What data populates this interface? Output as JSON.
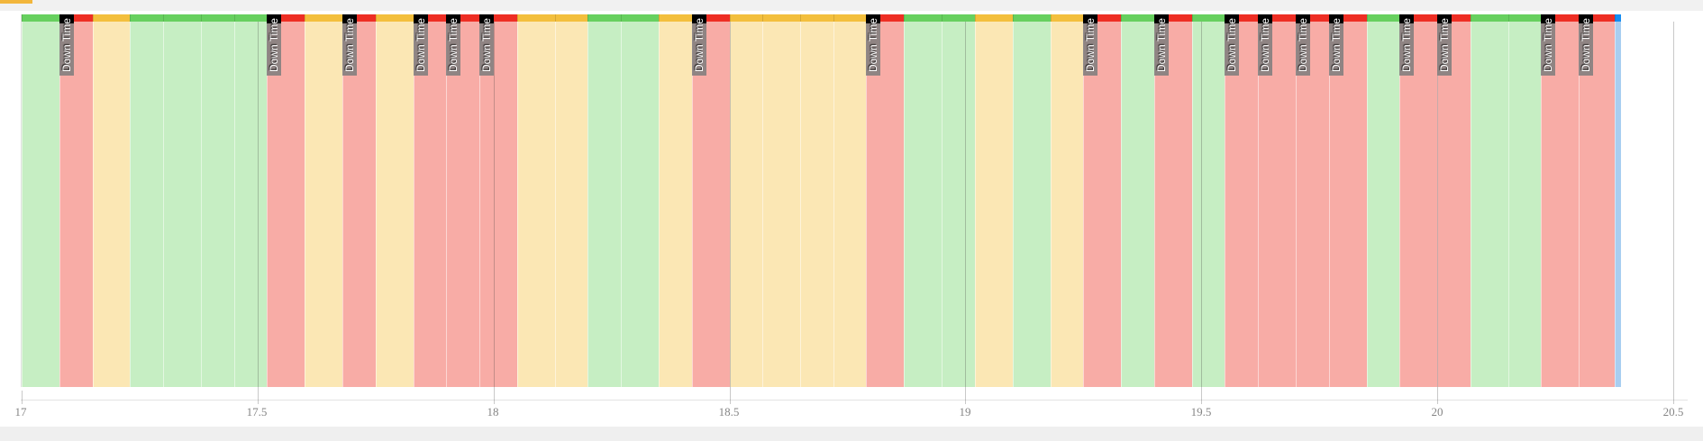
{
  "page": {
    "background": "#f1f1f1",
    "card_background": "#ffffff",
    "accent_bar_color": "#f2b63c"
  },
  "chart_data": {
    "type": "timeline-gantt",
    "description": "Machine status timeline: colored time bands with Down Time flags",
    "x_axis": {
      "min": 17,
      "max": 20.5,
      "tick_interval": 0.5,
      "tick_labels": [
        "17",
        "17.5",
        "18",
        "18.5",
        "19",
        "19.5",
        "20",
        "20.5"
      ],
      "grid": true,
      "label_font": "serif"
    },
    "states": {
      "running": {
        "strip_color": "#67d05f",
        "fill_color": "#c6eec3"
      },
      "idle": {
        "strip_color": "#f3bf3d",
        "fill_color": "#fbe7b4"
      },
      "down": {
        "strip_color": "#ee2e24",
        "fill_color": "#f8aca6"
      },
      "current": {
        "strip_color": "#168df2",
        "fill_color": "#a8cef1"
      }
    },
    "flag": {
      "text": "Down Time",
      "text_color": "#ffffff",
      "body_color": "rgba(125,125,125,0.85)",
      "cap_color": "#000000"
    },
    "segments": [
      {
        "start": 17.0,
        "end": 17.08,
        "state": "running",
        "label": null
      },
      {
        "start": 17.08,
        "end": 17.15,
        "state": "down",
        "label": "Down Time"
      },
      {
        "start": 17.15,
        "end": 17.23,
        "state": "idle",
        "label": null
      },
      {
        "start": 17.23,
        "end": 17.3,
        "state": "running",
        "label": null
      },
      {
        "start": 17.3,
        "end": 17.38,
        "state": "running",
        "label": null
      },
      {
        "start": 17.38,
        "end": 17.45,
        "state": "running",
        "label": null
      },
      {
        "start": 17.45,
        "end": 17.52,
        "state": "running",
        "label": null
      },
      {
        "start": 17.52,
        "end": 17.6,
        "state": "down",
        "label": "Down Time"
      },
      {
        "start": 17.6,
        "end": 17.68,
        "state": "idle",
        "label": null
      },
      {
        "start": 17.68,
        "end": 17.75,
        "state": "down",
        "label": "Down Time"
      },
      {
        "start": 17.75,
        "end": 17.83,
        "state": "idle",
        "label": null
      },
      {
        "start": 17.83,
        "end": 17.9,
        "state": "down",
        "label": "Down Time"
      },
      {
        "start": 17.9,
        "end": 17.97,
        "state": "down",
        "label": "Down Time"
      },
      {
        "start": 17.97,
        "end": 18.05,
        "state": "down",
        "label": "Down Time"
      },
      {
        "start": 18.05,
        "end": 18.13,
        "state": "idle",
        "label": null
      },
      {
        "start": 18.13,
        "end": 18.2,
        "state": "idle",
        "label": null
      },
      {
        "start": 18.2,
        "end": 18.27,
        "state": "running",
        "label": null
      },
      {
        "start": 18.27,
        "end": 18.35,
        "state": "running",
        "label": null
      },
      {
        "start": 18.35,
        "end": 18.42,
        "state": "idle",
        "label": null
      },
      {
        "start": 18.42,
        "end": 18.5,
        "state": "down",
        "label": "Down Time"
      },
      {
        "start": 18.5,
        "end": 18.57,
        "state": "idle",
        "label": null
      },
      {
        "start": 18.57,
        "end": 18.65,
        "state": "idle",
        "label": null
      },
      {
        "start": 18.65,
        "end": 18.72,
        "state": "idle",
        "label": null
      },
      {
        "start": 18.72,
        "end": 18.79,
        "state": "idle",
        "label": null
      },
      {
        "start": 18.79,
        "end": 18.87,
        "state": "down",
        "label": "Down Time"
      },
      {
        "start": 18.87,
        "end": 18.95,
        "state": "running",
        "label": null
      },
      {
        "start": 18.95,
        "end": 19.02,
        "state": "running",
        "label": null
      },
      {
        "start": 19.02,
        "end": 19.1,
        "state": "idle",
        "label": null
      },
      {
        "start": 19.1,
        "end": 19.18,
        "state": "running",
        "label": null
      },
      {
        "start": 19.18,
        "end": 19.25,
        "state": "idle",
        "label": null
      },
      {
        "start": 19.25,
        "end": 19.33,
        "state": "down",
        "label": "Down Time"
      },
      {
        "start": 19.33,
        "end": 19.4,
        "state": "running",
        "label": null
      },
      {
        "start": 19.4,
        "end": 19.48,
        "state": "down",
        "label": "Down Time"
      },
      {
        "start": 19.48,
        "end": 19.55,
        "state": "running",
        "label": null
      },
      {
        "start": 19.55,
        "end": 19.62,
        "state": "down",
        "label": "Down Time"
      },
      {
        "start": 19.62,
        "end": 19.7,
        "state": "down",
        "label": "Down Time"
      },
      {
        "start": 19.7,
        "end": 19.77,
        "state": "down",
        "label": "Down Time"
      },
      {
        "start": 19.77,
        "end": 19.85,
        "state": "down",
        "label": "Down Time"
      },
      {
        "start": 19.85,
        "end": 19.92,
        "state": "running",
        "label": null
      },
      {
        "start": 19.92,
        "end": 20.0,
        "state": "down",
        "label": "Down Time"
      },
      {
        "start": 20.0,
        "end": 20.07,
        "state": "down",
        "label": "Down Time"
      },
      {
        "start": 20.07,
        "end": 20.15,
        "state": "running",
        "label": null
      },
      {
        "start": 20.15,
        "end": 20.22,
        "state": "running",
        "label": null
      },
      {
        "start": 20.22,
        "end": 20.3,
        "state": "down",
        "label": "Down Time"
      },
      {
        "start": 20.3,
        "end": 20.375,
        "state": "down",
        "label": "Down Time"
      },
      {
        "start": 20.375,
        "end": 20.39,
        "state": "current",
        "label": null
      }
    ]
  }
}
